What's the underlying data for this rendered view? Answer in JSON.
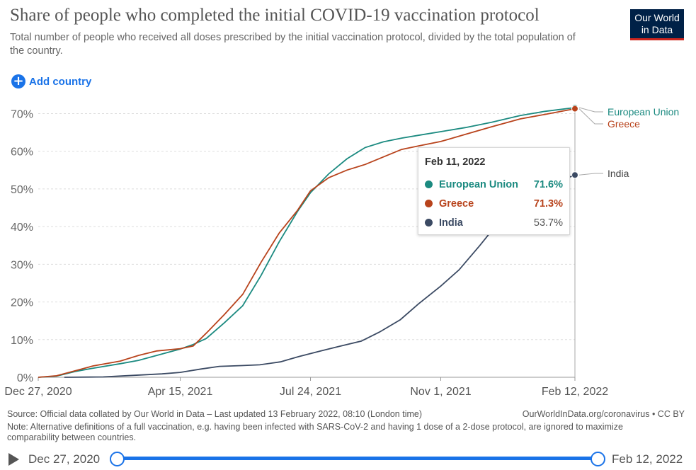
{
  "header": {
    "title": "Share of people who completed the initial COVID-19 vaccination protocol",
    "subtitle": "Total number of people who received all doses prescribed by the initial vaccination protocol, divided by the total population of the country.",
    "logo_line1": "Our World",
    "logo_line2": "in Data"
  },
  "controls": {
    "add_country_label": "Add country",
    "add_icon": "plus-circle-icon"
  },
  "colors": {
    "eu": "#1b8a80",
    "greece": "#b8431c",
    "india": "#3b4a63",
    "accent": "#1a73e8"
  },
  "chart_data": {
    "type": "line",
    "title": "Share of people who completed the initial COVID-19 vaccination protocol",
    "x_ticks": [
      "Dec 27, 2020",
      "Apr 15, 2021",
      "Jul 24, 2021",
      "Nov 1, 2021",
      "Feb 12, 2022"
    ],
    "y_ticks": [
      "0%",
      "10%",
      "20%",
      "30%",
      "40%",
      "50%",
      "60%",
      "70%"
    ],
    "ylim": [
      0,
      72
    ],
    "y_unit": "%",
    "grid": "horizontal dashed",
    "legend": "right, at line ends",
    "series": [
      {
        "name": "European Union",
        "end_label": "European Union",
        "points": [
          [
            "Dec 27, 2020",
            0
          ],
          [
            "Jan 10, 2021",
            0.3
          ],
          [
            "Jan 24, 2021",
            1.5
          ],
          [
            "Feb 7, 2021",
            2.4
          ],
          [
            "Feb 28, 2021",
            3.6
          ],
          [
            "Mar 14, 2021",
            4.5
          ],
          [
            "Mar 28, 2021",
            5.8
          ],
          [
            "Apr 15, 2021",
            7.5
          ],
          [
            "Apr 25, 2021",
            8.7
          ],
          [
            "May 5, 2021",
            10.3
          ],
          [
            "May 19, 2021",
            14.5
          ],
          [
            "Jun 2, 2021",
            19
          ],
          [
            "Jun 16, 2021",
            27
          ],
          [
            "Jun 30, 2021",
            36
          ],
          [
            "Jul 14, 2021",
            44
          ],
          [
            "Jul 24, 2021",
            49
          ],
          [
            "Aug 7, 2021",
            54
          ],
          [
            "Aug 21, 2021",
            58
          ],
          [
            "Sep 4, 2021",
            61
          ],
          [
            "Sep 18, 2021",
            62.5
          ],
          [
            "Oct 2, 2021",
            63.5
          ],
          [
            "Oct 16, 2021",
            64.3
          ],
          [
            "Nov 1, 2021",
            65.2
          ],
          [
            "Nov 20, 2021",
            66.3
          ],
          [
            "Dec 10, 2021",
            67.7
          ],
          [
            "Jan 1, 2022",
            69.5
          ],
          [
            "Jan 20, 2022",
            70.6
          ],
          [
            "Feb 12, 2022",
            71.6
          ]
        ]
      },
      {
        "name": "Greece",
        "end_label": "Greece",
        "points": [
          [
            "Dec 27, 2020",
            0
          ],
          [
            "Jan 10, 2021",
            0.4
          ],
          [
            "Jan 24, 2021",
            1.7
          ],
          [
            "Feb 7, 2021",
            3
          ],
          [
            "Feb 28, 2021",
            4.3
          ],
          [
            "Mar 14, 2021",
            5.8
          ],
          [
            "Mar 28, 2021",
            7
          ],
          [
            "Apr 15, 2021",
            7.6
          ],
          [
            "Apr 25, 2021",
            8.3
          ],
          [
            "May 5, 2021",
            11.7
          ],
          [
            "May 19, 2021",
            16.7
          ],
          [
            "Jun 2, 2021",
            22
          ],
          [
            "Jun 16, 2021",
            30.5
          ],
          [
            "Jun 30, 2021",
            38.3
          ],
          [
            "Jul 14, 2021",
            44.3
          ],
          [
            "Jul 24, 2021",
            49.5
          ],
          [
            "Aug 7, 2021",
            53
          ],
          [
            "Aug 21, 2021",
            55
          ],
          [
            "Sep 4, 2021",
            56.5
          ],
          [
            "Sep 18, 2021",
            58.5
          ],
          [
            "Oct 2, 2021",
            60.5
          ],
          [
            "Oct 16, 2021",
            61.5
          ],
          [
            "Nov 1, 2021",
            62.6
          ],
          [
            "Nov 20, 2021",
            64.5
          ],
          [
            "Dec 10, 2021",
            66.5
          ],
          [
            "Jan 1, 2022",
            68.6
          ],
          [
            "Jan 20, 2022",
            69.8
          ],
          [
            "Feb 12, 2022",
            71.3
          ]
        ]
      },
      {
        "name": "India",
        "end_label": "India",
        "points": [
          [
            "Jan 16, 2021",
            0
          ],
          [
            "Feb 15, 2021",
            0.1
          ],
          [
            "Mar 15, 2021",
            0.6
          ],
          [
            "Apr 1, 2021",
            0.9
          ],
          [
            "Apr 15, 2021",
            1.3
          ],
          [
            "May 1, 2021",
            2.2
          ],
          [
            "May 15, 2021",
            2.9
          ],
          [
            "Jun 1, 2021",
            3.1
          ],
          [
            "Jun 15, 2021",
            3.3
          ],
          [
            "Jul 1, 2021",
            4.1
          ],
          [
            "Jul 15, 2021",
            5.5
          ],
          [
            "Aug 1, 2021",
            7
          ],
          [
            "Aug 15, 2021",
            8.2
          ],
          [
            "Sep 1, 2021",
            9.6
          ],
          [
            "Sep 15, 2021",
            12
          ],
          [
            "Oct 1, 2021",
            15.3
          ],
          [
            "Oct 15, 2021",
            19.5
          ],
          [
            "Nov 1, 2021",
            24.2
          ],
          [
            "Nov 15, 2021",
            28.5
          ],
          [
            "Dec 1, 2021",
            35
          ],
          [
            "Dec 15, 2021",
            41
          ],
          [
            "Jan 1, 2022",
            46
          ],
          [
            "Jan 15, 2022",
            49.5
          ],
          [
            "Feb 1, 2022",
            52.2
          ],
          [
            "Feb 12, 2022",
            53.7
          ]
        ]
      }
    ]
  },
  "tooltip": {
    "date": "Feb 11, 2022",
    "rows": [
      {
        "name": "European Union",
        "value": "71.6%"
      },
      {
        "name": "Greece",
        "value": "71.3%"
      },
      {
        "name": "India",
        "value": "53.7%"
      }
    ]
  },
  "footer": {
    "source": "Source: Official data collated by Our World in Data – Last updated 13 February 2022, 08:10 (London time)",
    "license": "OurWorldInData.org/coronavirus • CC BY",
    "note": "Note: Alternative definitions of a full vaccination, e.g. having been infected with SARS-CoV-2 and having 1 dose of a 2-dose protocol, are ignored to maximize comparability between countries."
  },
  "timeline": {
    "start_label": "Dec 27, 2020",
    "end_label": "Feb 12, 2022",
    "play_icon": "play-icon"
  }
}
